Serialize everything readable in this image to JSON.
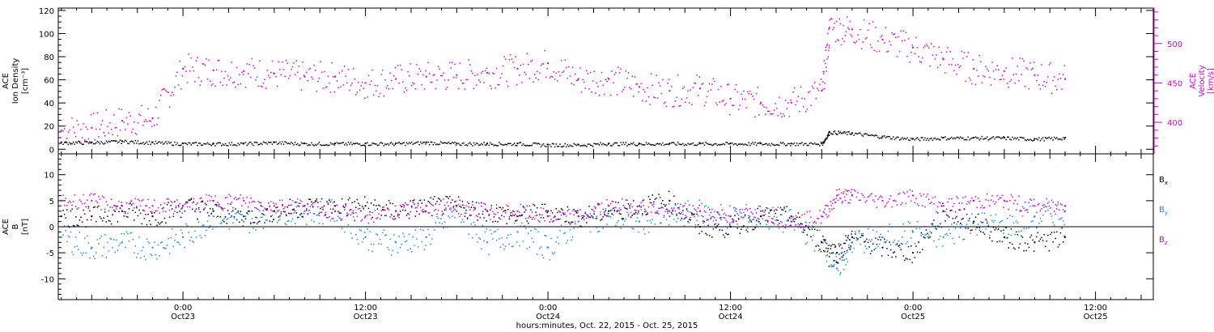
{
  "figure": {
    "xlabel": "hours:minutes, Oct. 22, 2015 - Oct. 25, 2015",
    "x_ticks": [
      {
        "t": 0,
        "time": "0:00",
        "date": "Oct23"
      },
      {
        "t": 12,
        "time": "12:00",
        "date": "Oct23"
      },
      {
        "t": 24,
        "time": "0:00",
        "date": "Oct24"
      },
      {
        "t": 36,
        "time": "12:00",
        "date": "Oct24"
      },
      {
        "t": 48,
        "time": "0:00",
        "date": "Oct25"
      },
      {
        "t": 60,
        "time": "12:00",
        "date": "Oct25"
      }
    ],
    "xlim": [
      -8.2,
      63.8
    ],
    "colors": {
      "black": "#000000",
      "magenta": "#cc00cc",
      "blue": "#1a88d8"
    }
  },
  "chart_data": [
    {
      "type": "scatter",
      "panel": "ion-density-velocity",
      "ylabel_left": [
        "ACE",
        "Ion Density",
        "[cm⁻³]"
      ],
      "ylabel_right": [
        "ACE",
        "Velocity",
        "[km/s]"
      ],
      "ylim_left": [
        -4,
        122
      ],
      "yticks_left": [
        "0",
        "20",
        "40",
        "60",
        "80",
        "100",
        "120"
      ],
      "ylim_right": [
        360,
        545
      ],
      "yticks_right": [
        "400",
        "450",
        "500"
      ],
      "series": [
        {
          "label": "density",
          "axis": "left",
          "color": "#000000",
          "x": [
            -8,
            -6,
            -4,
            -2,
            0,
            2,
            4,
            6,
            8,
            10,
            12,
            14,
            16,
            18,
            20,
            22,
            24,
            26,
            28,
            30,
            32,
            34,
            36,
            38,
            40,
            42,
            42.5,
            44,
            46,
            48,
            50,
            52,
            54,
            56,
            58
          ],
          "y": [
            6,
            6,
            7,
            6,
            5,
            5,
            5,
            6,
            5,
            5,
            5,
            5,
            6,
            5,
            5,
            5,
            4,
            4,
            5,
            5,
            5,
            5,
            5,
            5,
            5,
            5,
            15,
            14,
            11,
            9,
            10,
            10,
            10,
            9,
            10
          ]
        },
        {
          "label": "velocity",
          "axis": "right",
          "color": "#cc00cc",
          "x": [
            -8,
            -6,
            -4,
            -2,
            0,
            2,
            4,
            6,
            8,
            10,
            12,
            14,
            16,
            18,
            20,
            22,
            24,
            26,
            28,
            30,
            32,
            34,
            36,
            38,
            40,
            42,
            42.5,
            44,
            46,
            48,
            50,
            52,
            54,
            56,
            58
          ],
          "y": [
            390,
            393,
            402,
            405,
            468,
            466,
            465,
            462,
            458,
            458,
            450,
            455,
            458,
            460,
            463,
            468,
            475,
            455,
            455,
            445,
            440,
            443,
            430,
            425,
            425,
            440,
            520,
            518,
            505,
            495,
            480,
            468,
            465,
            460,
            455
          ]
        }
      ]
    },
    {
      "type": "scatter",
      "panel": "magnetic-field",
      "ylabel_left": [
        "ACE",
        "B",
        "[nT]"
      ],
      "ylim": [
        -14,
        14
      ],
      "yticks": [
        "-10",
        "-5",
        "0",
        "5",
        "10"
      ],
      "legend": [
        {
          "label": "B",
          "sub": "x",
          "color": "#000000"
        },
        {
          "label": "B",
          "sub": "y",
          "color": "#1a88d8"
        },
        {
          "label": "B",
          "sub": "z",
          "color": "#cc00cc"
        }
      ],
      "series": [
        {
          "label": "Bx",
          "color": "#000000",
          "x": [
            -8,
            -6,
            -4,
            -2,
            0,
            2,
            4,
            6,
            8,
            10,
            12,
            14,
            16,
            18,
            20,
            22,
            24,
            26,
            28,
            30,
            32,
            34,
            36,
            38,
            40,
            42,
            43,
            44,
            46,
            48,
            50,
            52,
            54,
            56,
            58
          ],
          "y": [
            2,
            2,
            3,
            2,
            4,
            3,
            2,
            3,
            4,
            4,
            4,
            3,
            4,
            4,
            3,
            2,
            3,
            2,
            3,
            4,
            5,
            0,
            0,
            2,
            2,
            -3,
            -5,
            -2,
            -4,
            -5,
            3,
            1,
            -2,
            -3,
            -2
          ]
        },
        {
          "label": "By",
          "color": "#1a88d8",
          "x": [
            -8,
            -6,
            -4,
            -2,
            0,
            2,
            4,
            6,
            8,
            10,
            12,
            14,
            16,
            18,
            20,
            22,
            24,
            26,
            28,
            30,
            32,
            34,
            36,
            38,
            40,
            42,
            43,
            44,
            46,
            48,
            50,
            52,
            54,
            56,
            58
          ],
          "y": [
            -2,
            -4,
            -3,
            -4,
            -2,
            2,
            1,
            3,
            3,
            3,
            -2,
            -3,
            -2,
            3,
            -3,
            -1,
            -4,
            1,
            2,
            1,
            2,
            3,
            2,
            2,
            1,
            -3,
            -8,
            -3,
            -2,
            -1,
            -2,
            1,
            0,
            2,
            3
          ]
        },
        {
          "label": "Bz",
          "color": "#cc00cc",
          "x": [
            -8,
            -6,
            -4,
            -2,
            0,
            2,
            4,
            6,
            8,
            10,
            12,
            14,
            16,
            18,
            20,
            22,
            24,
            26,
            28,
            30,
            32,
            34,
            36,
            38,
            40,
            42,
            43,
            44,
            46,
            48,
            50,
            52,
            54,
            56,
            58
          ],
          "y": [
            5,
            5,
            4,
            4,
            4,
            5,
            5,
            4,
            4,
            3,
            2,
            3,
            4,
            4,
            3,
            3,
            2,
            2,
            4,
            4,
            3,
            3,
            2,
            3,
            1,
            2,
            6,
            6,
            5,
            6,
            4,
            5,
            5,
            4,
            4
          ]
        }
      ]
    }
  ]
}
